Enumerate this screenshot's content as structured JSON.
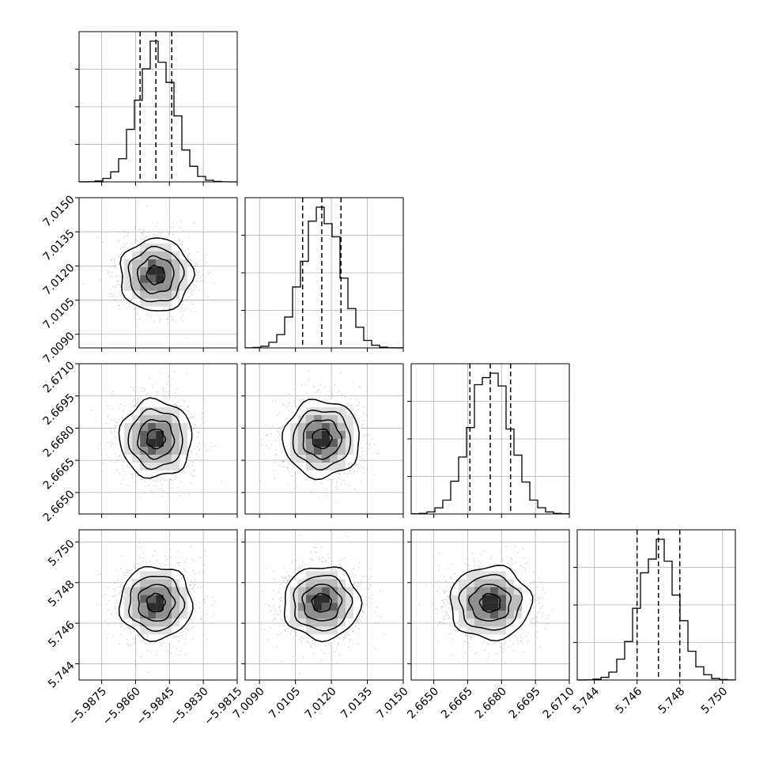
{
  "figure": {
    "type": "corner-plot"
  },
  "chart_data": {
    "type": "corner",
    "grid": true,
    "contours": true,
    "quantile_lines": "dashed",
    "parameters": [
      {
        "index": 0,
        "range": [
          -5.9885,
          -5.9815
        ],
        "ticks": [
          -5.9875,
          -5.986,
          -5.9845,
          -5.983,
          -5.9815
        ],
        "tick_labels": [
          "−5.9875",
          "−5.9860",
          "−5.9845",
          "−5.9830",
          "−5.9815"
        ],
        "mean": -5.9851,
        "std": 0.0008,
        "quantiles": [
          -5.9858,
          -5.9851,
          -5.9844
        ]
      },
      {
        "index": 1,
        "range": [
          7.0084,
          7.015
        ],
        "ticks": [
          7.009,
          7.0105,
          7.012,
          7.0135,
          7.015
        ],
        "tick_labels": [
          "7.0090",
          "7.0105",
          "7.0120",
          "7.0135",
          "7.0150"
        ],
        "mean": 7.0116,
        "std": 0.0008,
        "quantiles": [
          7.0108,
          7.0116,
          7.0124
        ]
      },
      {
        "index": 2,
        "range": [
          2.664,
          2.671
        ],
        "ticks": [
          2.665,
          2.6665,
          2.668,
          2.6695,
          2.671
        ],
        "tick_labels": [
          "2.6650",
          "2.6665",
          "2.6680",
          "2.6695",
          "2.6710"
        ],
        "mean": 2.6675,
        "std": 0.0009,
        "quantiles": [
          2.6666,
          2.6675,
          2.6684
        ]
      },
      {
        "index": 3,
        "range": [
          5.7432,
          5.7506
        ],
        "ticks": [
          5.744,
          5.746,
          5.748,
          5.75
        ],
        "tick_labels": [
          "5.744",
          "5.746",
          "5.748",
          "5.750"
        ],
        "mean": 5.747,
        "std": 0.0009,
        "quantiles": [
          5.746,
          5.747,
          5.748
        ]
      }
    ],
    "correlations": {
      "1-0": 0.0,
      "2-0": 0.0,
      "2-1": 0.0,
      "3-0": 0.0,
      "3-1": 0.0,
      "3-2": 0.0
    },
    "samples_per_panel": 2000
  }
}
